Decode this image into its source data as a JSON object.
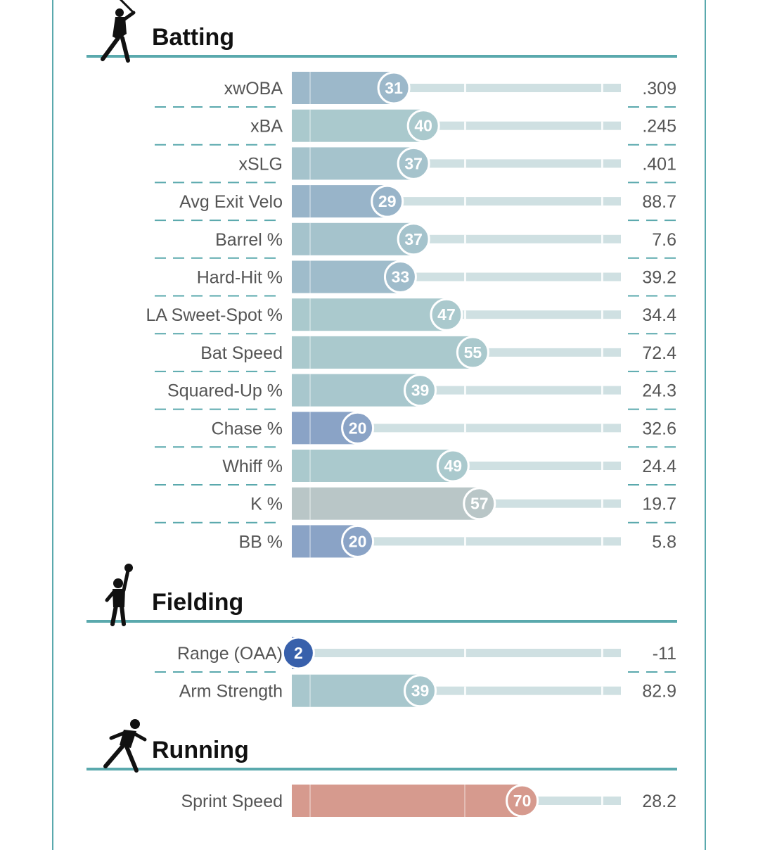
{
  "chart_data": {
    "type": "bar",
    "xlim": [
      0,
      100
    ],
    "colors": {
      "poor_blue": "#2f58a8",
      "below_avg_blue": "#8aa3c6",
      "average_teal": "#aac9cd",
      "neutral_gray": "#b9c6c7",
      "good_red": "#d69a8e",
      "track": "#cfe0e2",
      "divider_teal": "#5aa9ad",
      "frame_teal": "#5aa9ad"
    },
    "sections": [
      {
        "title": "Batting",
        "icon": "batter-icon",
        "rows": [
          {
            "label": "xwOBA",
            "percentile": 31,
            "value": ".309"
          },
          {
            "label": "xBA",
            "percentile": 40,
            "value": ".245"
          },
          {
            "label": "xSLG",
            "percentile": 37,
            "value": ".401"
          },
          {
            "label": "Avg Exit Velo",
            "percentile": 29,
            "value": "88.7"
          },
          {
            "label": "Barrel %",
            "percentile": 37,
            "value": "7.6"
          },
          {
            "label": "Hard-Hit %",
            "percentile": 33,
            "value": "39.2"
          },
          {
            "label": "LA Sweet-Spot %",
            "percentile": 47,
            "value": "34.4"
          },
          {
            "label": "Bat Speed",
            "percentile": 55,
            "value": "72.4"
          },
          {
            "label": "Squared-Up %",
            "percentile": 39,
            "value": "24.3"
          },
          {
            "label": "Chase %",
            "percentile": 20,
            "value": "32.6"
          },
          {
            "label": "Whiff %",
            "percentile": 49,
            "value": "24.4"
          },
          {
            "label": "K %",
            "percentile": 57,
            "value": "19.7"
          },
          {
            "label": "BB %",
            "percentile": 20,
            "value": "5.8"
          }
        ]
      },
      {
        "title": "Fielding",
        "icon": "fielder-icon",
        "rows": [
          {
            "label": "Range (OAA)",
            "percentile": 2,
            "value": "-11"
          },
          {
            "label": "Arm Strength",
            "percentile": 39,
            "value": "82.9"
          }
        ]
      },
      {
        "title": "Running",
        "icon": "runner-icon",
        "rows": [
          {
            "label": "Sprint Speed",
            "percentile": 70,
            "value": "28.2"
          }
        ]
      }
    ]
  }
}
